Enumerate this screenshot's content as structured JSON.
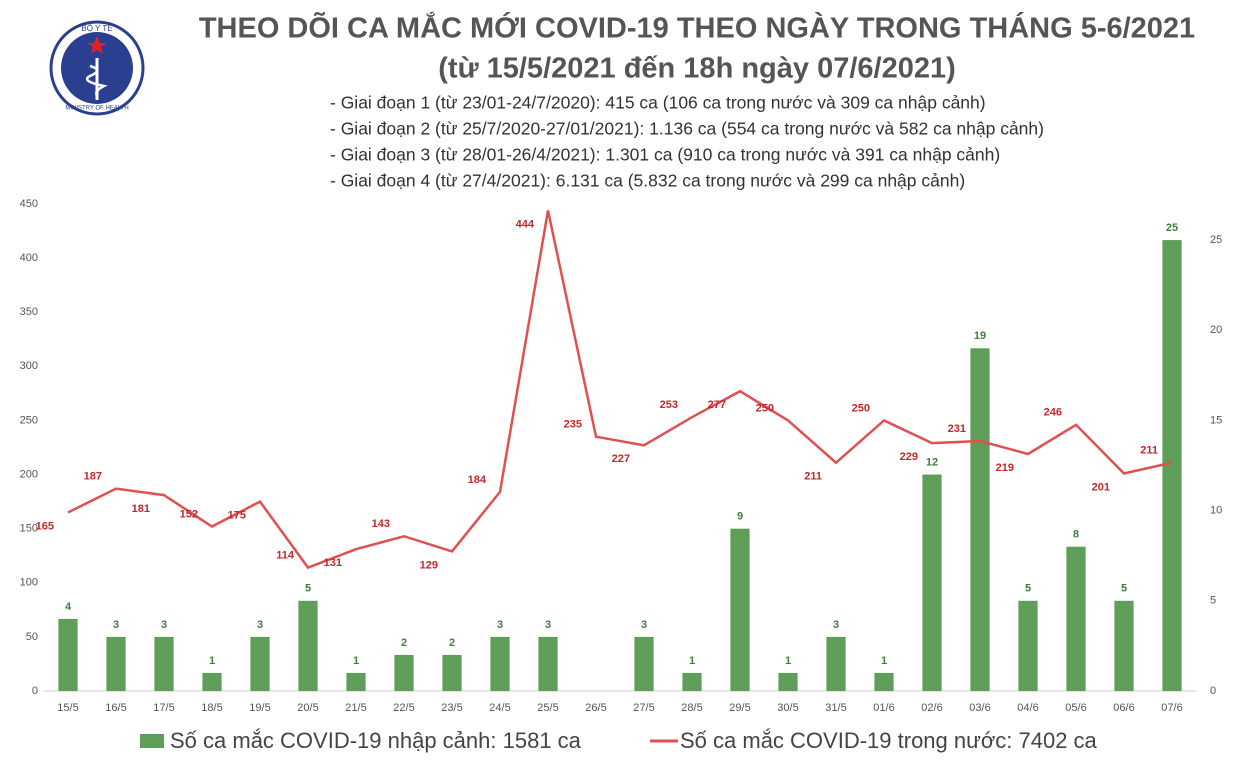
{
  "logo": {
    "top": "BỘ Y TẾ",
    "bottom": "MINISTRY OF HEALTH"
  },
  "chart_data": {
    "type": "combo",
    "title": "THEO DÕI CA MẮC MỚI COVID-19 THEO NGÀY TRONG THÁNG 5-6/2021",
    "subtitle": "(từ 15/5/2021 đến 18h ngày 07/6/2021)",
    "notes": [
      "- Giai đoạn 1 (từ 23/01-24/7/2020): 415 ca (106 ca trong nước và 309 ca nhập cảnh)",
      "- Giai đoạn 2 (từ 25/7/2020-27/01/2021): 1.136 ca (554 ca trong nước và 582 ca nhập cảnh)",
      "- Giai đoạn 3 (từ 28/01-26/4/2021): 1.301 ca (910 ca trong nước và 391 ca nhập cảnh)",
      "- Giai đoạn 4 (từ 27/4/2021): 6.131 ca (5.832 ca trong nước và 299 ca nhập cảnh)"
    ],
    "categories": [
      "15/5",
      "16/5",
      "17/5",
      "18/5",
      "19/5",
      "20/5",
      "21/5",
      "22/5",
      "23/5",
      "24/5",
      "25/5",
      "26/5",
      "27/5",
      "28/5",
      "29/5",
      "30/5",
      "31/5",
      "01/6",
      "02/6",
      "03/6",
      "04/6",
      "05/6",
      "06/6",
      "07/6"
    ],
    "series": [
      {
        "name": "Số ca mắc COVID-19 nhập cảnh: 1581 ca",
        "type": "bar",
        "axis": "y2",
        "color": "#5e9e58",
        "values": [
          4,
          3,
          3,
          1,
          3,
          5,
          1,
          2,
          2,
          3,
          3,
          null,
          3,
          1,
          9,
          1,
          3,
          1,
          12,
          19,
          5,
          8,
          5,
          25
        ]
      },
      {
        "name": "Số ca mắc COVID-19 trong nước: 7402 ca",
        "type": "line",
        "color": "#e05050",
        "values": [
          165,
          187,
          181,
          152,
          175,
          114,
          131,
          143,
          129,
          184,
          444,
          235,
          227,
          253,
          277,
          250,
          211,
          250,
          229,
          231,
          219,
          246,
          201,
          211
        ]
      }
    ],
    "ylim": [
      0,
      450
    ],
    "yticks": [
      0,
      50,
      100,
      150,
      200,
      250,
      300,
      350,
      400,
      450
    ],
    "y2lim": [
      0,
      27
    ],
    "y2ticks": [
      0,
      5,
      10,
      15,
      20,
      25
    ],
    "grid": false
  }
}
